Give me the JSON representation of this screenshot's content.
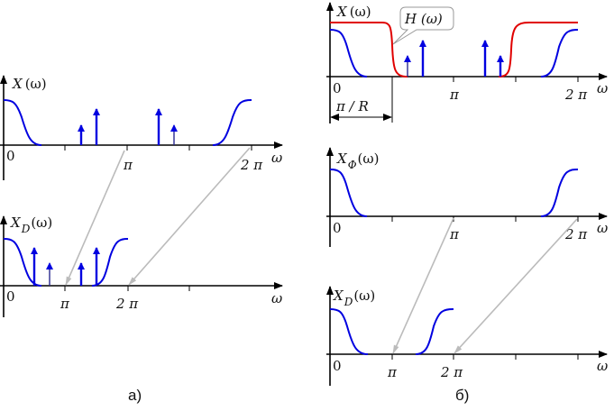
{
  "colors": {
    "spectrum": "#0000e0",
    "filter": "#e00000",
    "mapping_arrows": "#bbbbbb"
  },
  "panel_a": {
    "caption": "а)",
    "top": {
      "symbol": "X",
      "arg": "(ω)",
      "zero": "0",
      "pi": "π",
      "two_pi": "2 π",
      "axis": "ω"
    },
    "bottom": {
      "symbol": "X",
      "sub": "D",
      "arg": "(ω)",
      "zero": "0",
      "pi": "π",
      "two_pi": "2 π",
      "axis": "ω"
    }
  },
  "panel_b": {
    "caption": "б)",
    "top": {
      "symbol": "X",
      "arg": "(ω)",
      "filter_label": "H (ω)",
      "zero": "0",
      "pi": "π",
      "two_pi": "2 π",
      "axis": "ω",
      "cutoff": "π / R"
    },
    "middle": {
      "symbol": "X",
      "sub": "Φ",
      "arg": "(ω)",
      "zero": "0",
      "pi": "π",
      "two_pi": "2 π",
      "axis": "ω"
    },
    "bottom": {
      "symbol": "X",
      "sub": "D",
      "arg": "(ω)",
      "zero": "0",
      "pi": "π",
      "two_pi": "2 π",
      "axis": "ω"
    }
  }
}
